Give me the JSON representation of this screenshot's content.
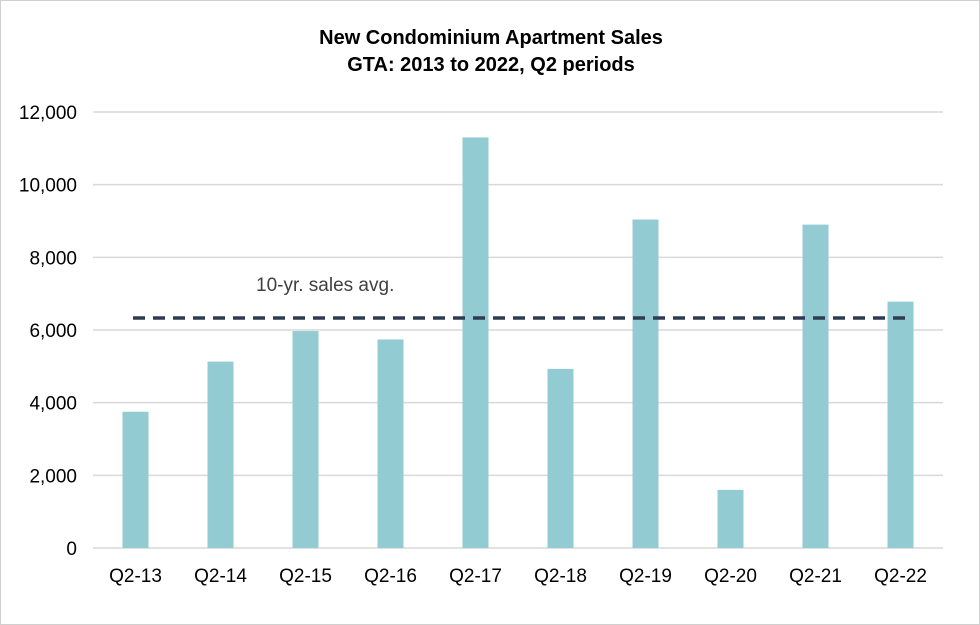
{
  "chart_data": {
    "type": "bar",
    "title": "New Condominium Apartment Sales",
    "subtitle": "GTA: 2013 to 2022, Q2 periods",
    "categories": [
      "Q2-13",
      "Q2-14",
      "Q2-15",
      "Q2-16",
      "Q2-17",
      "Q2-18",
      "Q2-19",
      "Q2-20",
      "Q2-21",
      "Q2-22"
    ],
    "values": [
      3750,
      5130,
      5970,
      5740,
      11300,
      4930,
      9040,
      1600,
      8900,
      6780
    ],
    "ylim": [
      0,
      12000
    ],
    "yticks": [
      "0",
      "2,000",
      "4,000",
      "6,000",
      "8,000",
      "10,000",
      "12,000"
    ],
    "ytick_values": [
      0,
      2000,
      4000,
      6000,
      8000,
      10000,
      12000
    ],
    "grid": true,
    "reference_line": {
      "label": "10-yr. sales avg.",
      "value": 6330
    },
    "colors": {
      "bar": "#93cbd2",
      "reference_line": "#2f3b52",
      "grid": "#d9d9d9"
    }
  }
}
